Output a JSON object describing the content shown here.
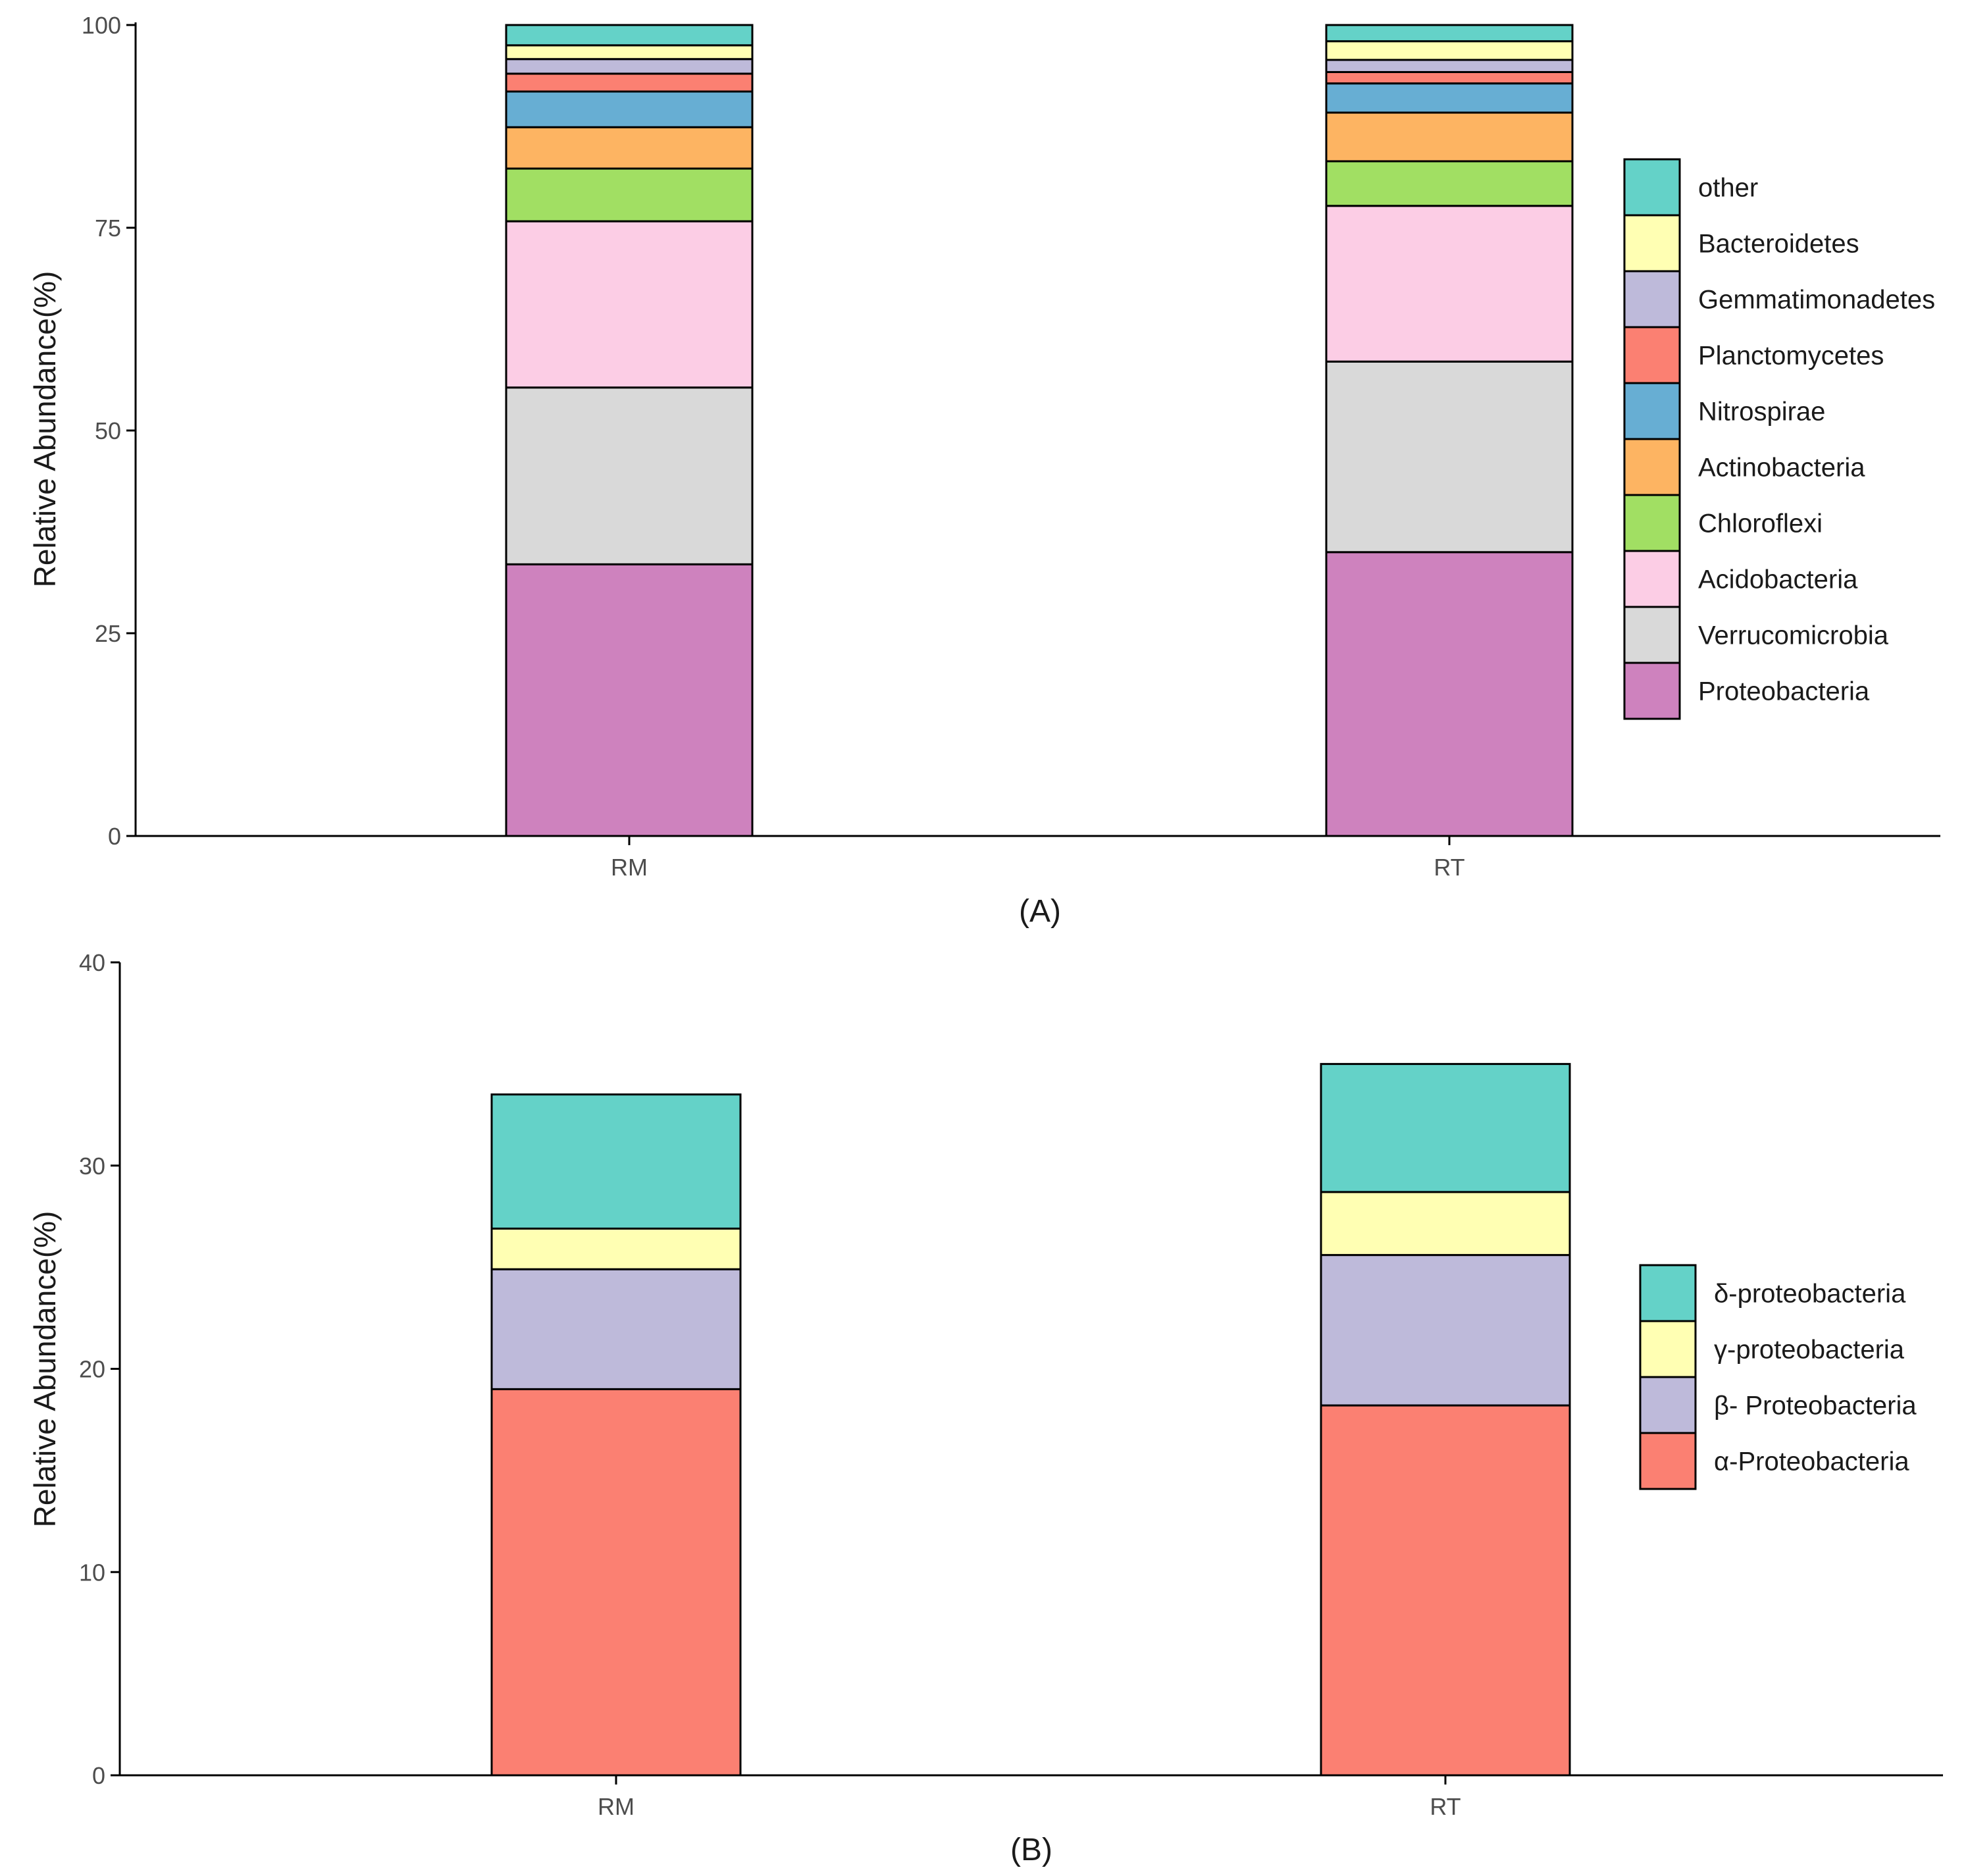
{
  "chart_data": [
    {
      "type": "bar",
      "stacked": true,
      "panel_label": "(A)",
      "ylabel": "Relative Abundance(%)",
      "ylim": [
        0,
        100
      ],
      "yticks": [
        "0",
        "25",
        "50",
        "75",
        "100"
      ],
      "categories": [
        "RM",
        "RT"
      ],
      "series": [
        {
          "name": "Proteobacteria",
          "color": "#CE82BE",
          "values": [
            33.5,
            35.0
          ]
        },
        {
          "name": "Verrucomicrobia",
          "color": "#D9D9D9",
          "values": [
            21.8,
            23.5
          ]
        },
        {
          "name": "Acidobacteria",
          "color": "#FCCDE5",
          "values": [
            20.5,
            19.2
          ]
        },
        {
          "name": "Chloroflexi",
          "color": "#A1DF63",
          "values": [
            6.5,
            5.5
          ]
        },
        {
          "name": "Actinobacteria",
          "color": "#FDB462",
          "values": [
            5.1,
            6.0
          ]
        },
        {
          "name": "Nitrospirae",
          "color": "#67AED3",
          "values": [
            4.4,
            3.6
          ]
        },
        {
          "name": "Planctomycetes",
          "color": "#FB8072",
          "values": [
            2.2,
            1.4
          ]
        },
        {
          "name": "Gemmatimonadetes",
          "color": "#BEBADA",
          "values": [
            1.8,
            1.5
          ]
        },
        {
          "name": "Bacteroidetes",
          "color": "#FFFFB3",
          "values": [
            1.7,
            2.3
          ]
        },
        {
          "name": "other",
          "color": "#64D2C8",
          "values": [
            2.5,
            2.0
          ]
        }
      ],
      "legend": {
        "position": "right",
        "order": [
          "other",
          "Bacteroidetes",
          "Gemmatimonadetes",
          "Planctomycetes",
          "Nitrospirae",
          "Actinobacteria",
          "Chloroflexi",
          "Acidobacteria",
          "Verrucomicrobia",
          "Proteobacteria"
        ]
      }
    },
    {
      "type": "bar",
      "stacked": true,
      "panel_label": "(B)",
      "ylabel": "Relative Abundance(%)",
      "ylim": [
        0,
        40
      ],
      "yticks": [
        "0",
        "10",
        "20",
        "30",
        "40"
      ],
      "categories": [
        "RM",
        "RT"
      ],
      "series": [
        {
          "name": "α-Proteobacteria",
          "color": "#FB8072",
          "values": [
            19.0,
            18.2
          ]
        },
        {
          "name": "β- Proteobacteria",
          "color": "#BEBADA",
          "values": [
            5.9,
            7.4
          ]
        },
        {
          "name": "γ-proteobacteria",
          "color": "#FFFFB3",
          "values": [
            2.0,
            3.1
          ]
        },
        {
          "name": "δ-proteobacteria",
          "color": "#64D2C8",
          "values": [
            6.6,
            6.3
          ]
        }
      ],
      "legend": {
        "position": "right",
        "order": [
          "δ-proteobacteria",
          "γ-proteobacteria",
          "β- Proteobacteria",
          "α-Proteobacteria"
        ]
      }
    }
  ]
}
